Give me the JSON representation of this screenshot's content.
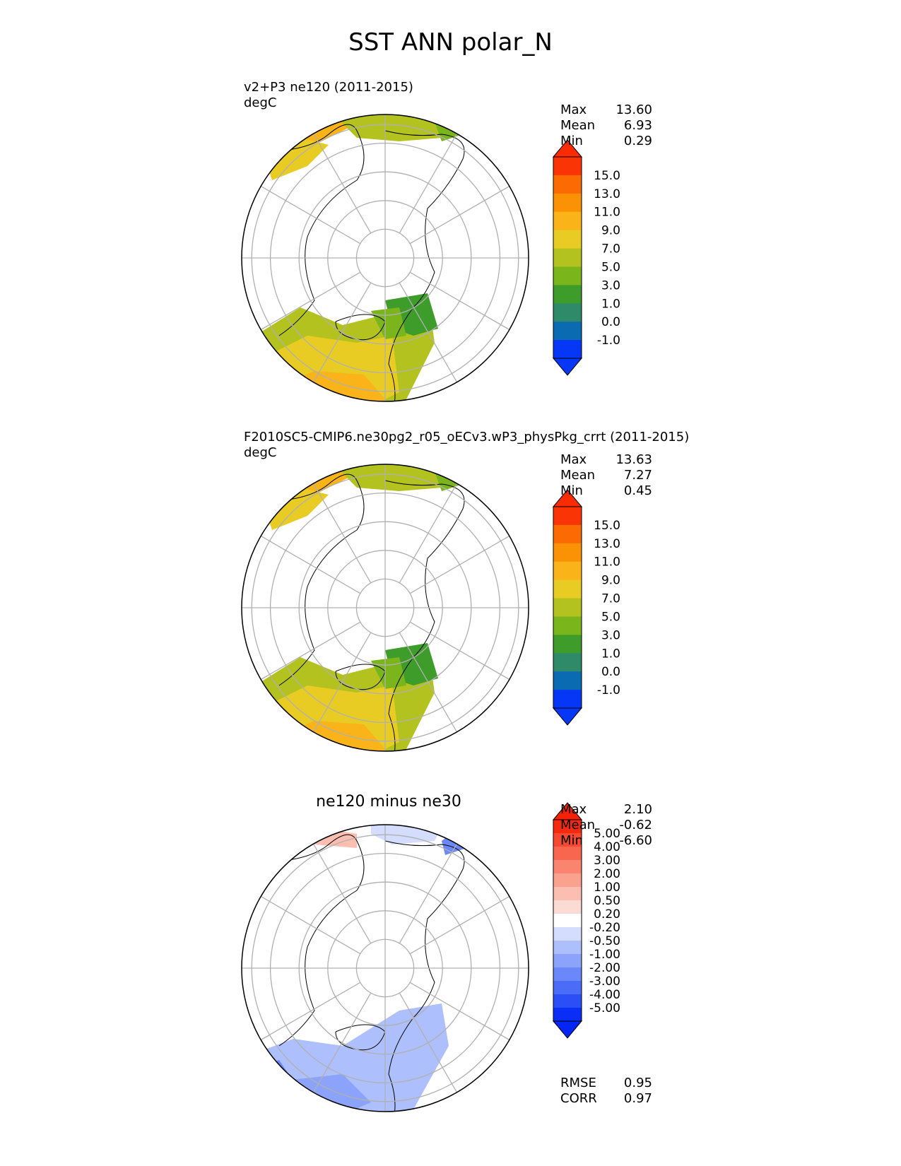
{
  "page_title": "SST ANN polar_N",
  "chart_data": [
    {
      "type": "heatmap",
      "projection": "north polar stereographic",
      "title": "v2+P3 ne120 (2011-2015)",
      "units": "degC",
      "stats": [
        {
          "label": "Max",
          "value": "13.60"
        },
        {
          "label": "Mean",
          "value": "6.93"
        },
        {
          "label": "Min",
          "value": "0.29"
        }
      ],
      "colorbar": {
        "extend": "both",
        "ticks": [
          "15.0",
          "13.0",
          "11.0",
          "9.0",
          "7.0",
          "5.0",
          "3.0",
          "1.0",
          "0.0",
          "-1.0"
        ],
        "levels": [
          -1,
          0,
          1,
          3,
          5,
          7,
          9,
          11,
          13,
          15
        ],
        "colors": [
          "#0637f7",
          "#0a6bb3",
          "#2f8a6a",
          "#3e9d2a",
          "#7bb51c",
          "#b3c21e",
          "#e8cc24",
          "#fab41a",
          "#fb9205",
          "#fb6a03",
          "#fb3405"
        ],
        "over_color": "#fb2c02",
        "under_color": "#0637f7"
      }
    },
    {
      "type": "heatmap",
      "projection": "north polar stereographic",
      "title": "F2010SC5-CMIP6.ne30pg2_r05_oECv3.wP3_physPkg_crrt (2011-2015)",
      "units": "degC",
      "stats": [
        {
          "label": "Max",
          "value": "13.63"
        },
        {
          "label": "Mean",
          "value": "7.27"
        },
        {
          "label": "Min",
          "value": "0.45"
        }
      ],
      "colorbar": {
        "extend": "both",
        "ticks": [
          "15.0",
          "13.0",
          "11.0",
          "9.0",
          "7.0",
          "5.0",
          "3.0",
          "1.0",
          "0.0",
          "-1.0"
        ],
        "levels": [
          -1,
          0,
          1,
          3,
          5,
          7,
          9,
          11,
          13,
          15
        ],
        "colors": [
          "#0637f7",
          "#0a6bb3",
          "#2f8a6a",
          "#3e9d2a",
          "#7bb51c",
          "#b3c21e",
          "#e8cc24",
          "#fab41a",
          "#fb9205",
          "#fb6a03",
          "#fb3405"
        ],
        "over_color": "#fb2c02",
        "under_color": "#0637f7"
      }
    },
    {
      "type": "heatmap",
      "projection": "north polar stereographic",
      "title": "ne120 minus ne30",
      "stats": [
        {
          "label": "Max",
          "value": "2.10"
        },
        {
          "label": "Mean",
          "value": "-0.62"
        },
        {
          "label": "Min",
          "value": "-6.60"
        }
      ],
      "metrics": [
        {
          "label": "RMSE",
          "value": "0.95"
        },
        {
          "label": "CORR",
          "value": "0.97"
        }
      ],
      "colorbar": {
        "extend": "both",
        "ticks": [
          "5.00",
          "4.00",
          "3.00",
          "2.00",
          "1.00",
          "0.50",
          "0.20",
          "-0.20",
          "-0.50",
          "-1.00",
          "-2.00",
          "-3.00",
          "-4.00",
          "-5.00"
        ],
        "levels": [
          -5,
          -4,
          -3,
          -2,
          -1,
          -0.5,
          -0.2,
          0.2,
          0.5,
          1,
          2,
          3,
          4,
          5
        ],
        "colors": [
          "#0a2ef5",
          "#2b4ff7",
          "#4a6cf9",
          "#6a88fa",
          "#8ba3fb",
          "#aebffd",
          "#d5ddfe",
          "#ffffff",
          "#fddbd5",
          "#fcbeb0",
          "#fba28f",
          "#fa8470",
          "#f96650",
          "#f84830",
          "#f72a10"
        ],
        "over_color": "#f62004",
        "under_color": "#0426f4"
      }
    }
  ]
}
